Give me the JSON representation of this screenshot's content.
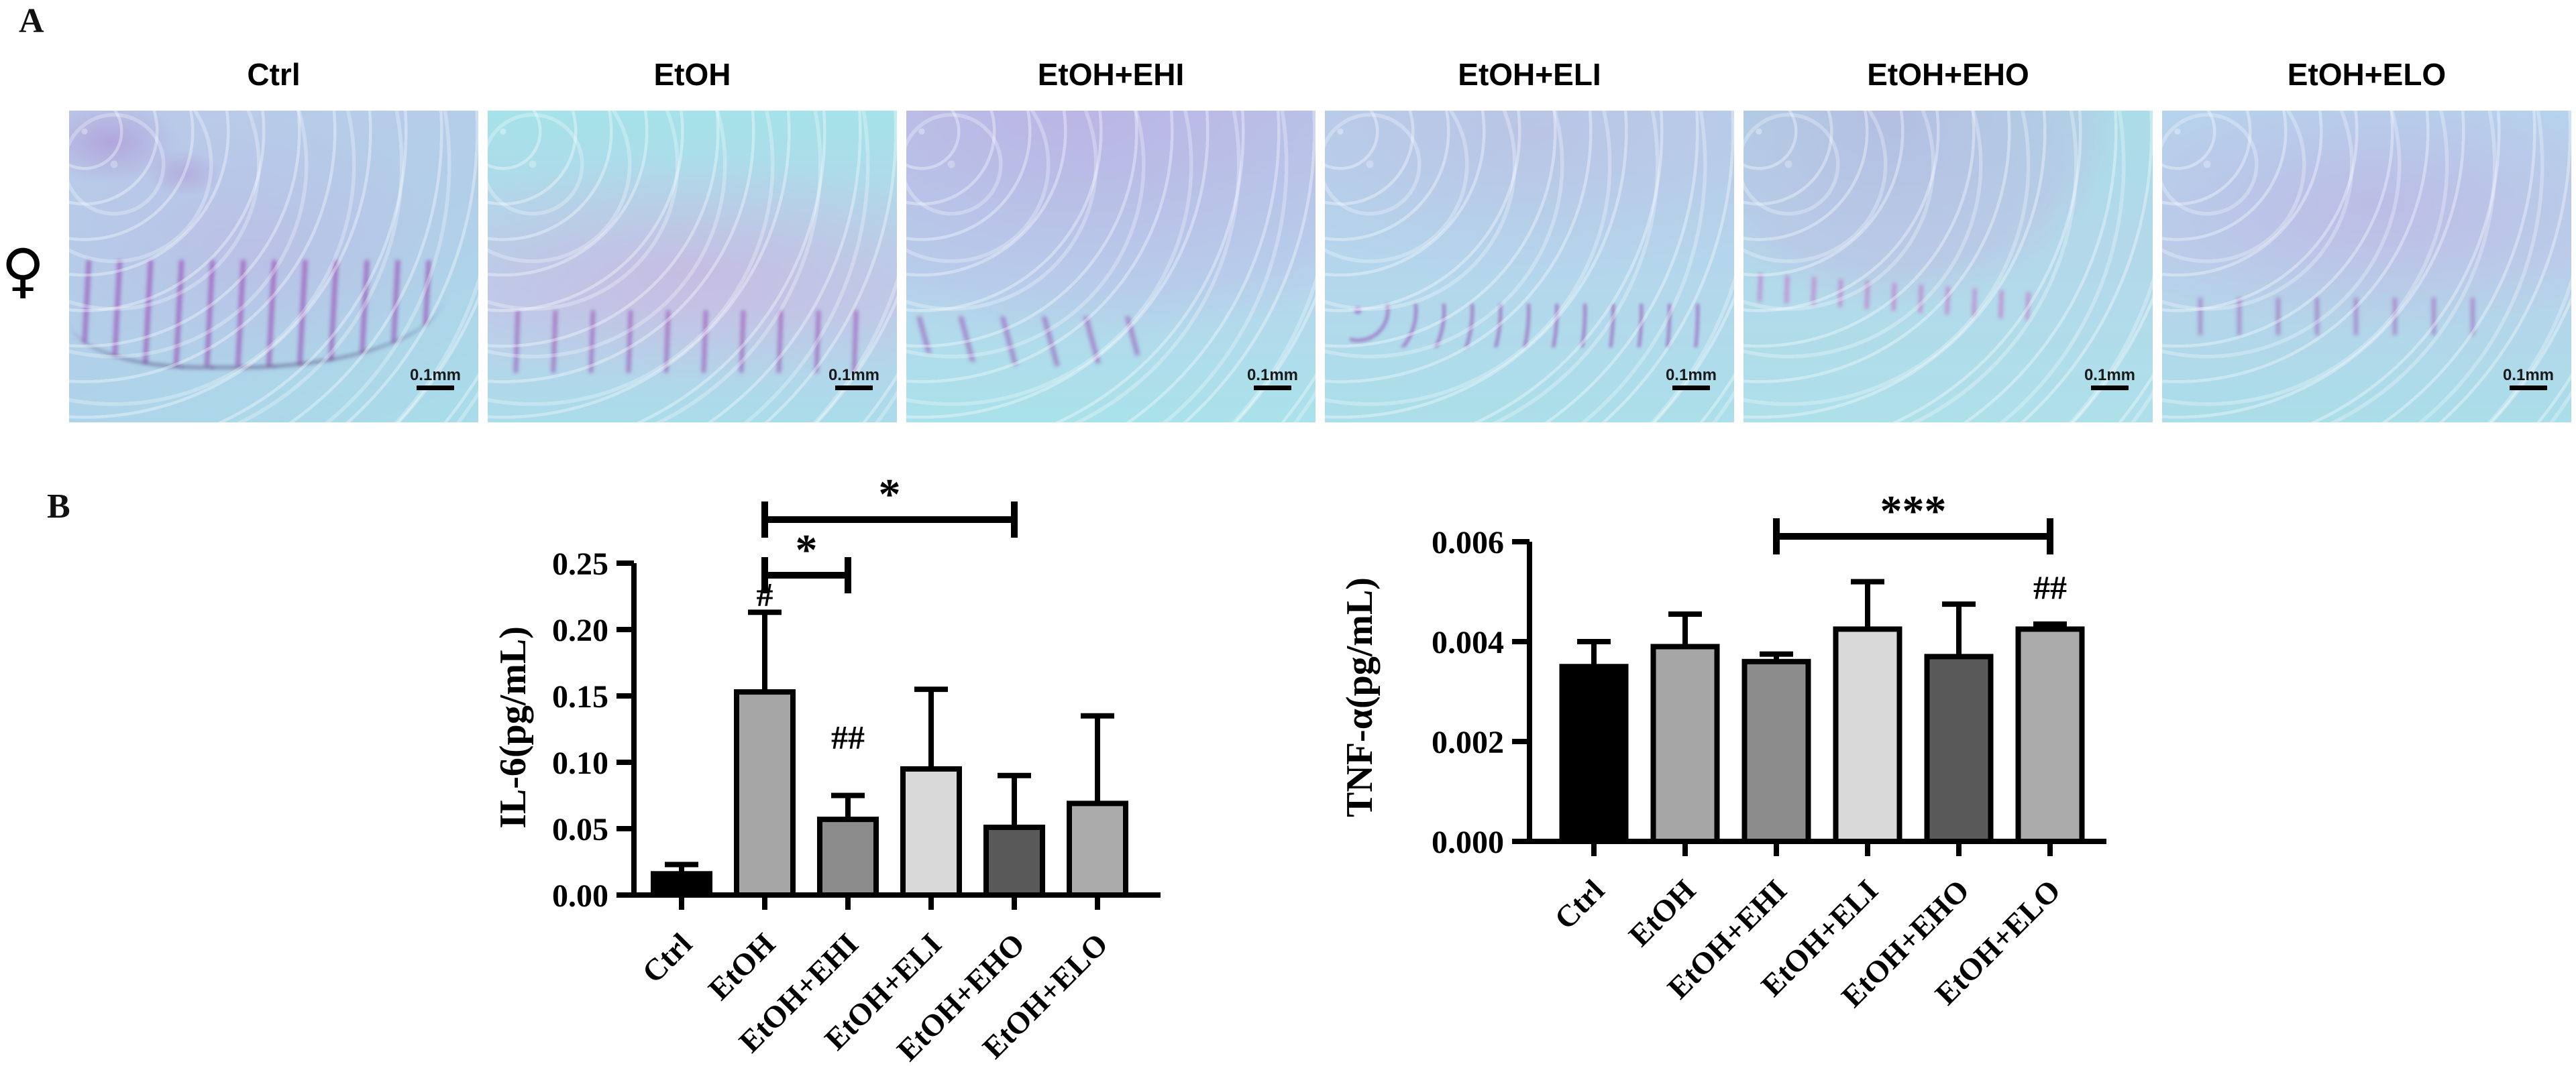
{
  "figure": {
    "panel_a_label": "A",
    "panel_b_label": "B",
    "sex_symbol": "♀",
    "scale_bar_label": "0.1mm",
    "micrographs": [
      {
        "title": "Ctrl"
      },
      {
        "title": "EtOH"
      },
      {
        "title": "EtOH+EHI"
      },
      {
        "title": "EtOH+ELI"
      },
      {
        "title": "EtOH+EHO"
      },
      {
        "title": "EtOH+ELO"
      }
    ],
    "histology_palette": {
      "background_blue": "#b4d4ec",
      "cyan": "#a7e2e9",
      "lavender": "#c4b4e0",
      "stain_purple": "#9643af",
      "stain_pink": "#d89ad4"
    }
  },
  "chart_data": [
    {
      "type": "bar",
      "title": "",
      "xlabel": "",
      "ylabel": "IL-6(pg/mL)",
      "categories": [
        "Ctrl",
        "EtOH",
        "EtOH+EHI",
        "EtOH+ELI",
        "EtOH+EHO",
        "EtOH+ELO"
      ],
      "values": [
        0.016,
        0.153,
        0.057,
        0.095,
        0.051,
        0.069
      ],
      "error_caps": [
        0.023,
        0.213,
        0.075,
        0.155,
        0.09,
        0.135
      ],
      "ylim": [
        0,
        0.25
      ],
      "yticks": [
        "0.00",
        "0.05",
        "0.10",
        "0.15",
        "0.20",
        "0.25"
      ],
      "bar_fills": [
        "#000000",
        "#a6a6a6",
        "#8c8c8c",
        "#d9d9d9",
        "#595959",
        "#ababab"
      ],
      "grid": false,
      "legend": false,
      "annotations": [
        {
          "category_index": 1,
          "text": "#"
        },
        {
          "category_index": 2,
          "text": "##"
        }
      ],
      "brackets": [
        {
          "from": 1,
          "to": 4,
          "label": "*"
        },
        {
          "from": 1,
          "to": 2,
          "label": "*"
        }
      ]
    },
    {
      "type": "bar",
      "title": "",
      "xlabel": "",
      "ylabel": "TNF-α(pg/mL)",
      "categories": [
        "Ctrl",
        "EtOH",
        "EtOH+EHI",
        "EtOH+ELI",
        "EtOH+EHO",
        "EtOH+ELO"
      ],
      "values": [
        0.0035,
        0.0039,
        0.0036,
        0.00425,
        0.0037,
        0.00425
      ],
      "error_caps": [
        0.004,
        0.00455,
        0.00375,
        0.0052,
        0.00475,
        0.00435
      ],
      "ylim": [
        0,
        0.006
      ],
      "yticks": [
        "0.000",
        "0.002",
        "0.004",
        "0.006"
      ],
      "bar_fills": [
        "#000000",
        "#a6a6a6",
        "#8c8c8c",
        "#d9d9d9",
        "#595959",
        "#ababab"
      ],
      "grid": false,
      "legend": false,
      "annotations": [
        {
          "category_index": 5,
          "text": "##"
        }
      ],
      "brackets": [
        {
          "from": 2,
          "to": 5,
          "label": "***"
        }
      ]
    }
  ]
}
